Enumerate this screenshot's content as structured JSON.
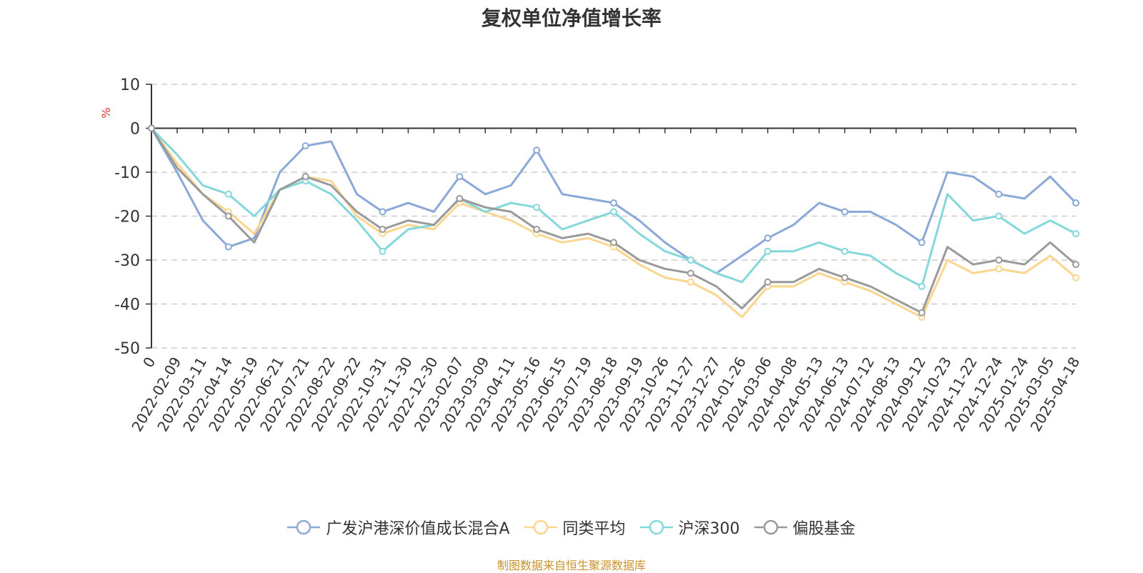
{
  "chart_data": {
    "type": "line",
    "title": "复权单位净值增长率",
    "ylabel": "%",
    "ylim": [
      -50,
      10
    ],
    "yticks": [
      10,
      0,
      -10,
      -20,
      -30,
      -40,
      -50
    ],
    "grid": true,
    "legend_position": "bottom",
    "x_tick_labels": [
      "0",
      "2022-02-09",
      "2022-03-11",
      "2022-04-14",
      "2022-05-19",
      "2022-06-21",
      "2022-07-21",
      "2022-08-22",
      "2022-09-22",
      "2022-10-31",
      "2022-11-30",
      "2022-12-30",
      "2023-02-07",
      "2023-03-09",
      "2023-04-11",
      "2023-05-16",
      "2023-06-15",
      "2023-07-19",
      "2023-08-18",
      "2023-09-19",
      "2023-10-26",
      "2023-11-27",
      "2023-12-27",
      "2024-01-26",
      "2024-03-06",
      "2024-04-08",
      "2024-05-13",
      "2024-06-13",
      "2024-07-12",
      "2024-08-13",
      "2024-09-12",
      "2024-10-23",
      "2024-11-22",
      "2024-12-24",
      "2025-01-24",
      "2025-03-05",
      "2025-04-18"
    ],
    "x": [
      "0",
      "2022-02-09",
      "2022-03-11",
      "2022-04-14",
      "2022-05-19",
      "2022-06-21",
      "2022-07-21",
      "2022-08-22",
      "2022-09-22",
      "2022-10-31",
      "2022-11-30",
      "2022-12-30",
      "2023-02-07",
      "2023-03-09",
      "2023-04-11",
      "2023-05-16",
      "2023-06-15",
      "2023-07-19",
      "2023-08-18",
      "2023-09-19",
      "2023-10-26",
      "2023-11-27",
      "2023-12-27",
      "2024-01-26",
      "2024-03-06",
      "2024-04-08",
      "2024-05-13",
      "2024-06-13",
      "2024-07-12",
      "2024-08-13",
      "2024-09-12",
      "2024-10-23",
      "2024-11-22",
      "2024-12-24",
      "2025-01-24",
      "2025-03-05",
      "2025-04-18"
    ],
    "series": [
      {
        "name": "广发沪港深价值成长混合A",
        "color": "#8aa8d8",
        "values": [
          0,
          -10,
          -21,
          -27,
          -25,
          -10,
          -4,
          -3,
          -15,
          -19,
          -17,
          -19,
          -11,
          -15,
          -13,
          -5,
          -15,
          -16,
          -17,
          -21,
          -26,
          -30,
          -33,
          -29,
          -25,
          -22,
          -17,
          -19,
          -19,
          -22,
          -26,
          -10,
          -11,
          -15,
          -16,
          -11,
          -17
        ]
      },
      {
        "name": "同类平均",
        "color": "#fcd58e",
        "values": [
          0,
          -8,
          -15,
          -19,
          -24,
          -14,
          -11,
          -12,
          -20,
          -24,
          -22,
          -23,
          -17,
          -19,
          -21,
          -24,
          -26,
          -25,
          -27,
          -31,
          -34,
          -35,
          -38,
          -43,
          -36,
          -36,
          -33,
          -35,
          -37,
          -40,
          -43,
          -30,
          -33,
          -32,
          -33,
          -29,
          -34
        ]
      },
      {
        "name": "沪深300",
        "color": "#84d8dc",
        "values": [
          0,
          -6,
          -13,
          -15,
          -20,
          -14,
          -12,
          -15,
          -21,
          -28,
          -23,
          -22,
          -16,
          -19,
          -17,
          -18,
          -23,
          -21,
          -19,
          -24,
          -28,
          -30,
          -33,
          -35,
          -28,
          -28,
          -26,
          -28,
          -29,
          -33,
          -36,
          -15,
          -21,
          -20,
          -24,
          -21,
          -24
        ]
      },
      {
        "name": "偏股基金",
        "color": "#9a9a9a",
        "values": [
          0,
          -9,
          -15,
          -20,
          -26,
          -14,
          -11,
          -13,
          -19,
          -23,
          -21,
          -22,
          -16,
          -18,
          -19,
          -23,
          -25,
          -24,
          -26,
          -30,
          -32,
          -33,
          -36,
          -41,
          -35,
          -35,
          -32,
          -34,
          -36,
          -39,
          -42,
          -27,
          -31,
          -30,
          -31,
          -26,
          -31
        ]
      }
    ]
  },
  "legend": [
    {
      "label": "广发沪港深价值成长混合A",
      "color": "#8aa8d8"
    },
    {
      "label": "同类平均",
      "color": "#fcd58e"
    },
    {
      "label": "沪深300",
      "color": "#84d8dc"
    },
    {
      "label": "偏股基金",
      "color": "#9a9a9a"
    }
  ],
  "footer": "制图数据来自恒生聚源数据库"
}
